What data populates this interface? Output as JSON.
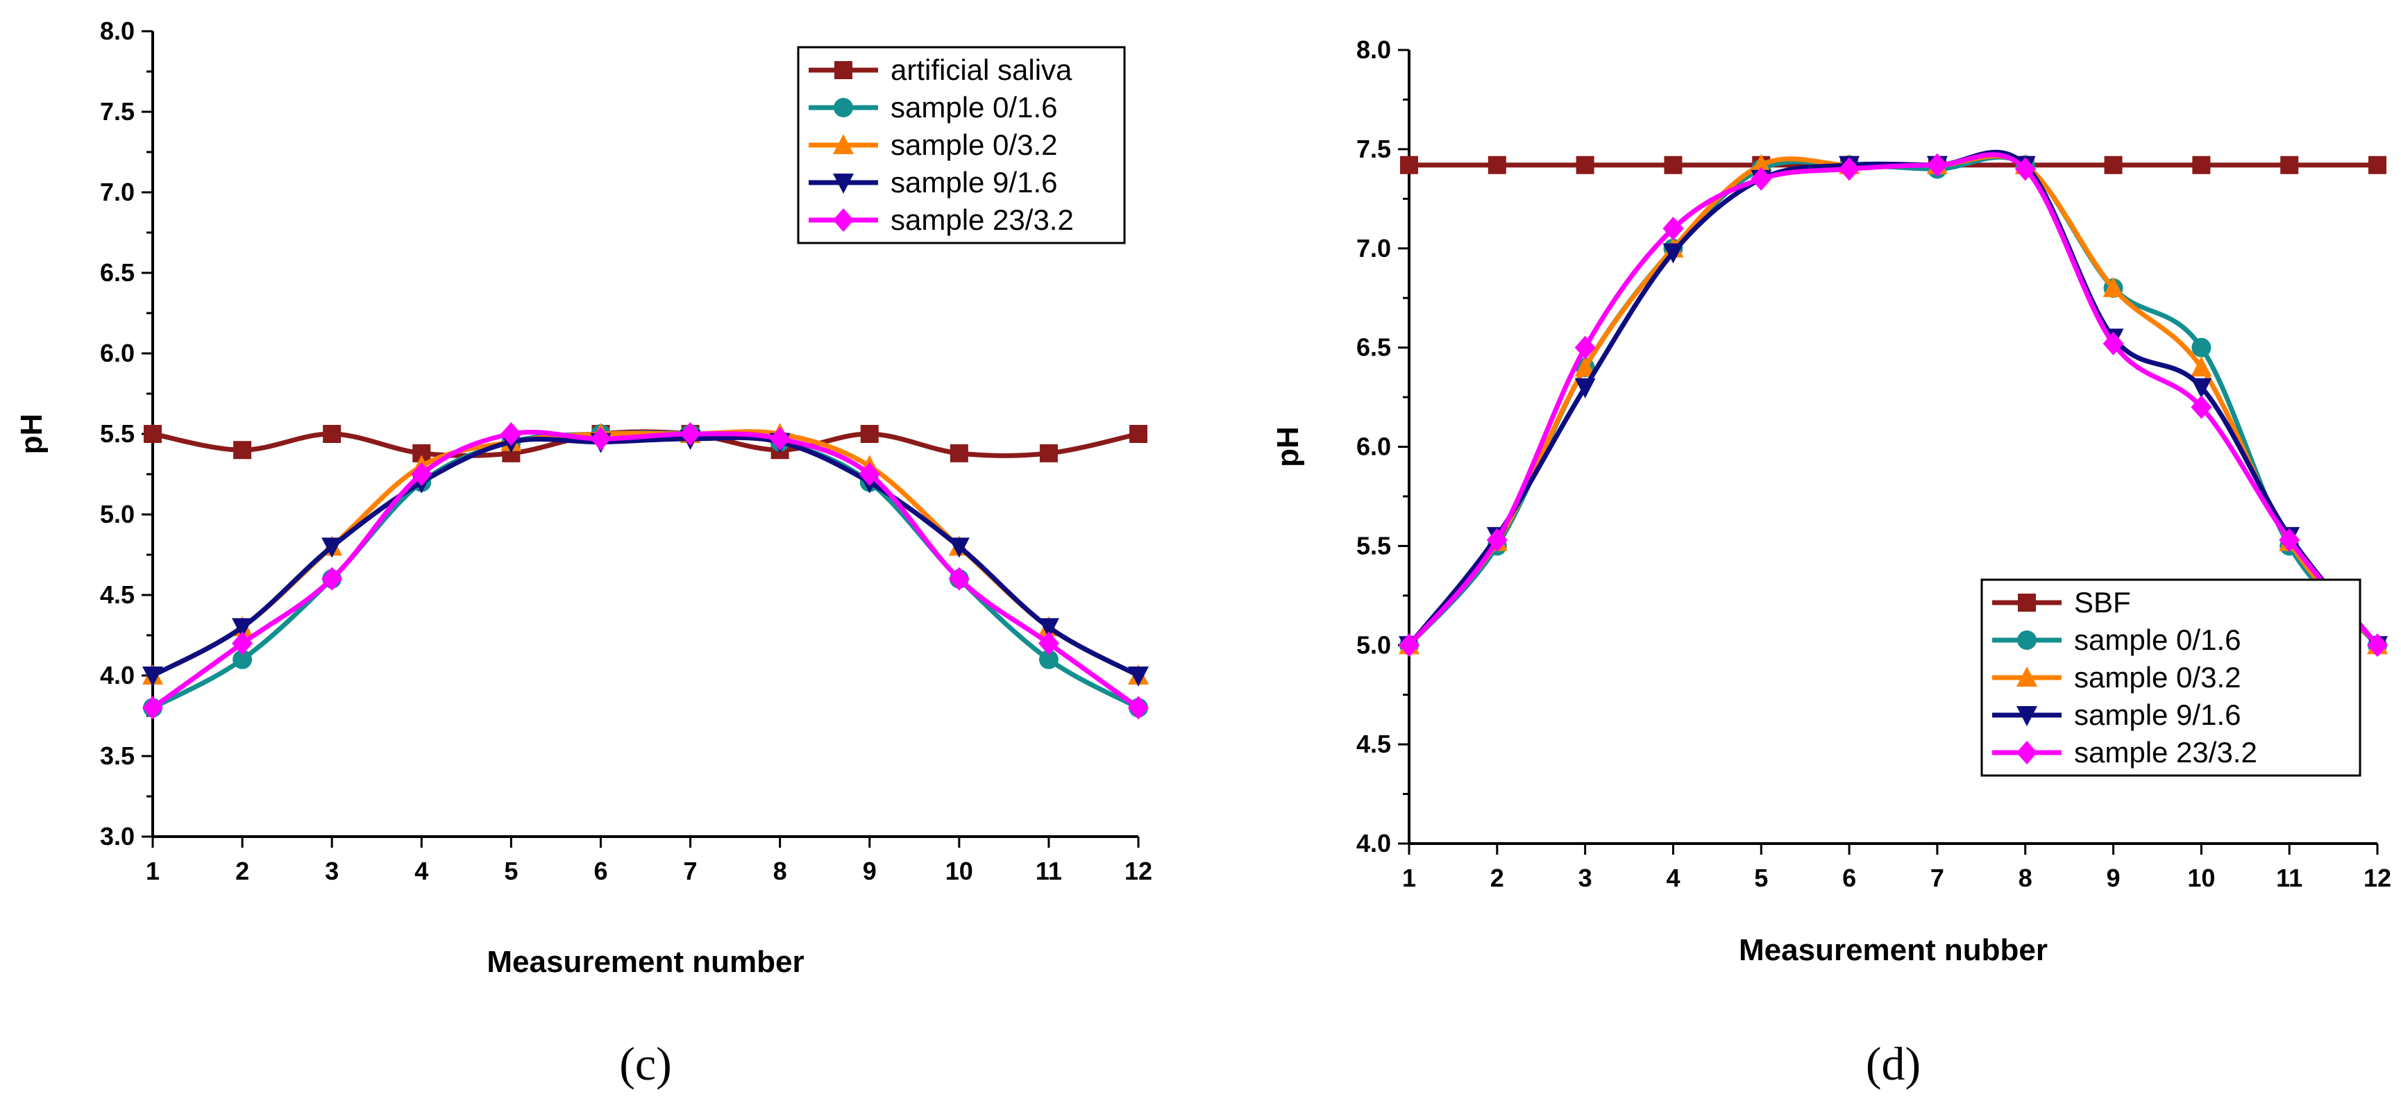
{
  "chart_data": [
    {
      "type": "line",
      "panel_label": "(c)",
      "title": "",
      "xlabel": "Measurement number",
      "ylabel": "pH",
      "xlim": [
        1,
        12
      ],
      "ylim": [
        3.0,
        8.0
      ],
      "x_ticks": [
        1,
        2,
        3,
        4,
        5,
        6,
        7,
        8,
        9,
        10,
        11,
        12
      ],
      "x_tick_labels": [
        "1",
        "2",
        "3",
        "4",
        "5",
        "6",
        "7",
        "8",
        "9",
        "10",
        "11",
        "12"
      ],
      "y_ticks": [
        3.0,
        3.5,
        4.0,
        4.5,
        5.0,
        5.5,
        6.0,
        6.5,
        7.0,
        7.5,
        8.0
      ],
      "y_tick_labels": [
        "3.0",
        "3.5",
        "4.0",
        "4.5",
        "5.0",
        "5.5",
        "6.0",
        "6.5",
        "7.0",
        "7.5",
        "8.0"
      ],
      "legend_position": "top-right",
      "x": [
        1,
        2,
        3,
        4,
        5,
        6,
        7,
        8,
        9,
        10,
        11,
        12
      ],
      "series": [
        {
          "name": "artificial saliva",
          "color": "#8b1a1a",
          "marker": "square",
          "values": [
            5.5,
            5.4,
            5.5,
            5.38,
            5.38,
            5.5,
            5.5,
            5.4,
            5.5,
            5.38,
            5.38,
            5.5
          ]
        },
        {
          "name": "sample 0/1.6",
          "color": "#138f8f",
          "marker": "circle",
          "values": [
            3.8,
            4.1,
            4.6,
            5.2,
            5.45,
            5.5,
            5.5,
            5.45,
            5.2,
            4.6,
            4.1,
            3.8
          ]
        },
        {
          "name": "sample 0/3.2",
          "color": "#ff8000",
          "marker": "triangle-up",
          "values": [
            4.0,
            4.3,
            4.8,
            5.3,
            5.45,
            5.5,
            5.5,
            5.5,
            5.3,
            4.8,
            4.3,
            4.0
          ]
        },
        {
          "name": "sample 9/1.6",
          "color": "#0d0d80",
          "marker": "triangle-down",
          "values": [
            4.0,
            4.3,
            4.8,
            5.2,
            5.45,
            5.45,
            5.47,
            5.45,
            5.2,
            4.8,
            4.3,
            4.0
          ]
        },
        {
          "name": "sample 23/3.2",
          "color": "#ff00ff",
          "marker": "diamond",
          "values": [
            3.8,
            4.2,
            4.6,
            5.25,
            5.5,
            5.47,
            5.5,
            5.47,
            5.25,
            4.6,
            4.2,
            3.8
          ]
        }
      ]
    },
    {
      "type": "line",
      "panel_label": "(d)",
      "title": "",
      "xlabel": "Measurement nubber",
      "ylabel": "pH",
      "xlim": [
        1,
        12
      ],
      "ylim": [
        4.0,
        8.0
      ],
      "x_ticks": [
        1,
        2,
        3,
        4,
        5,
        6,
        7,
        8,
        9,
        10,
        11,
        12
      ],
      "x_tick_labels": [
        "1",
        "2",
        "3",
        "4",
        "5",
        "6",
        "7",
        "8",
        "9",
        "10",
        "11",
        "12"
      ],
      "y_ticks": [
        4.0,
        4.5,
        5.0,
        5.5,
        6.0,
        6.5,
        7.0,
        7.5,
        8.0
      ],
      "y_tick_labels": [
        "4.0",
        "4.5",
        "5.0",
        "5.5",
        "6.0",
        "6.5",
        "7.0",
        "7.5",
        "8.0"
      ],
      "legend_position": "bottom-right",
      "x": [
        1,
        2,
        3,
        4,
        5,
        6,
        7,
        8,
        9,
        10,
        11,
        12
      ],
      "series": [
        {
          "name": "SBF",
          "color": "#8b1a1a",
          "marker": "square",
          "values": [
            7.42,
            7.42,
            7.42,
            7.42,
            7.42,
            7.42,
            7.42,
            7.42,
            7.42,
            7.42,
            7.42,
            7.42
          ]
        },
        {
          "name": "sample 0/1.6",
          "color": "#138f8f",
          "marker": "circle",
          "values": [
            5.0,
            5.5,
            6.4,
            7.0,
            7.4,
            7.42,
            7.4,
            7.42,
            6.8,
            6.5,
            5.5,
            5.0
          ]
        },
        {
          "name": "sample 0/3.2",
          "color": "#ff8000",
          "marker": "triangle-up",
          "values": [
            5.0,
            5.52,
            6.4,
            7.0,
            7.42,
            7.42,
            7.42,
            7.42,
            6.8,
            6.4,
            5.52,
            5.0
          ]
        },
        {
          "name": "sample 9/1.6",
          "color": "#0d0d80",
          "marker": "triangle-down",
          "values": [
            5.0,
            5.55,
            6.3,
            6.98,
            7.35,
            7.42,
            7.42,
            7.42,
            6.55,
            6.3,
            5.55,
            5.0
          ]
        },
        {
          "name": "sample 23/3.2",
          "color": "#ff00ff",
          "marker": "diamond",
          "values": [
            5.0,
            5.53,
            6.5,
            7.1,
            7.35,
            7.4,
            7.42,
            7.4,
            6.52,
            6.2,
            5.53,
            5.0
          ]
        }
      ]
    }
  ]
}
